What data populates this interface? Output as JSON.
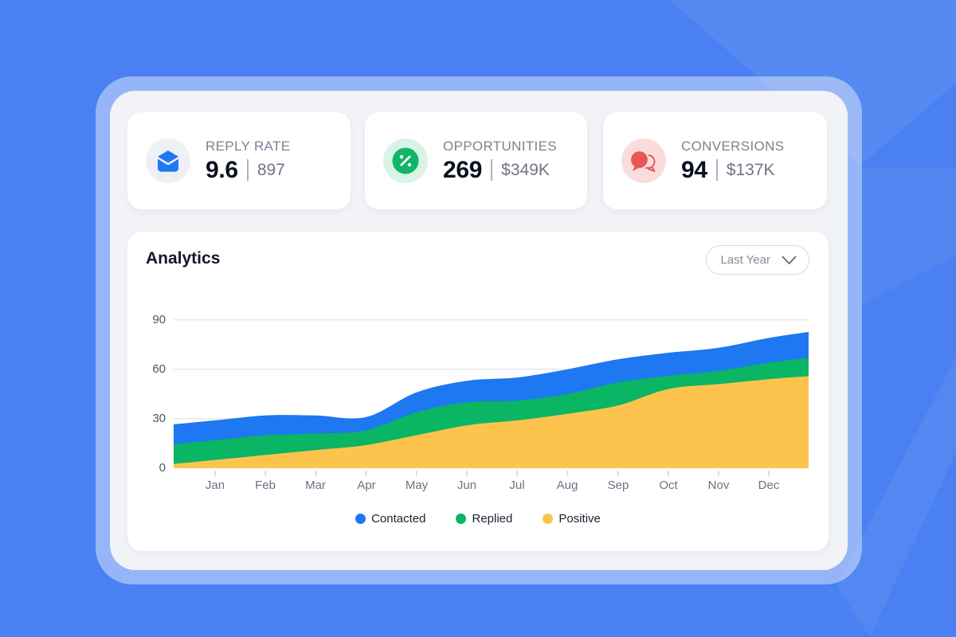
{
  "stat_cards": [
    {
      "label": "REPLY RATE",
      "value": "9.6",
      "secondary": "897",
      "icon": "mail-icon",
      "icon_color": "#1d78f2",
      "icon_bg": "#eef0f6"
    },
    {
      "label": "OPPORTUNITIES",
      "value": "269",
      "secondary": "$349K",
      "icon": "percent-icon",
      "icon_color": "#10b667",
      "icon_bg": "#d9f3e7"
    },
    {
      "label": "CONVERSIONS",
      "value": "94",
      "secondary": "$137K",
      "icon": "chat-icon",
      "icon_color": "#ea5557",
      "icon_bg": "#fbdcdc"
    }
  ],
  "analytics": {
    "title": "Analytics",
    "filter": {
      "value": "Last Year",
      "icon": "chevron-down-icon"
    }
  },
  "chart_data": {
    "type": "area",
    "stacked": true,
    "title": "Analytics",
    "categories": [
      "Jan",
      "Feb",
      "Mar",
      "Apr",
      "May",
      "Jun",
      "Jul",
      "Aug",
      "Sep",
      "Oct",
      "Nov",
      "Dec"
    ],
    "series": [
      {
        "name": "Contacted",
        "color": "#1d78f2",
        "values": [
          12,
          12,
          11,
          8,
          12,
          13,
          14,
          15,
          14,
          14,
          14,
          15
        ]
      },
      {
        "name": "Replied",
        "color": "#0ab563",
        "values": [
          12,
          12,
          10,
          9,
          14,
          14,
          12,
          12,
          14,
          8,
          8,
          10
        ]
      },
      {
        "name": "Positive",
        "color": "#fcc44d",
        "values": [
          5,
          8,
          11,
          14,
          20,
          26,
          29,
          33,
          38,
          48,
          51,
          54
        ]
      }
    ],
    "y_ticks": [
      0,
      30,
      60,
      90
    ],
    "ylim": [
      0,
      90
    ],
    "xlabel": "",
    "ylabel": "",
    "grid": "horizontal",
    "legend_position": "bottom"
  },
  "colors": {
    "background": "#4a80f1",
    "frame": "#9bb9f7",
    "panel": "#f1f3f7",
    "card": "#ffffff",
    "gridline": "#e7e9ee",
    "tick": "#d2d5dc",
    "contacted": "#1d78f2",
    "replied": "#0ab563",
    "positive": "#fcc44d"
  }
}
